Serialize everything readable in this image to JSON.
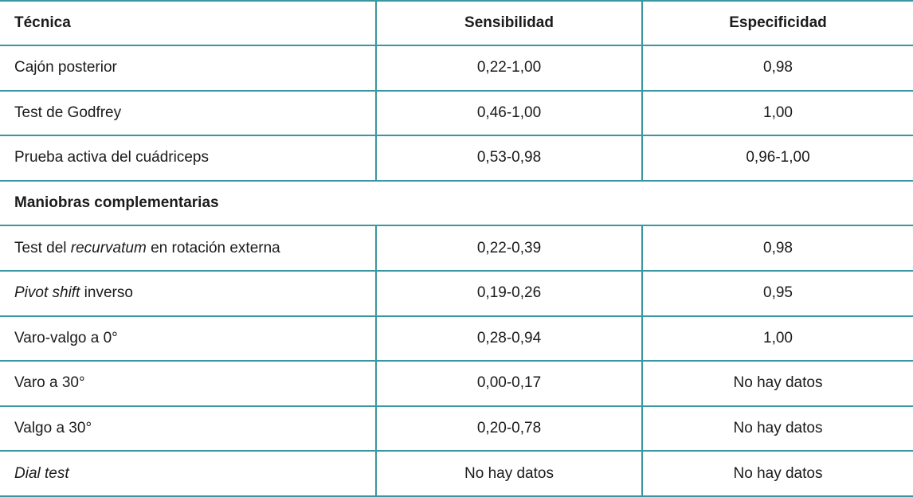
{
  "chart_data": {
    "type": "table",
    "style": {
      "border_color": "#3a96a0",
      "text_color": "#1b1b1b",
      "background": "#ffffff"
    },
    "columns": [
      {
        "label": "Técnica",
        "align": "left"
      },
      {
        "label": "Sensibilidad",
        "align": "center"
      },
      {
        "label": "Especificidad",
        "align": "center"
      }
    ],
    "rows": [
      {
        "kind": "data",
        "name": "cajon-posterior",
        "cells": [
          [
            {
              "text": "Cajón posterior"
            }
          ],
          [
            {
              "text": "0,22-1,00"
            }
          ],
          [
            {
              "text": "0,98"
            }
          ]
        ]
      },
      {
        "kind": "data",
        "name": "test-de-godfrey",
        "cells": [
          [
            {
              "text": "Test de Godfrey"
            }
          ],
          [
            {
              "text": "0,46-1,00"
            }
          ],
          [
            {
              "text": "1,00"
            }
          ]
        ]
      },
      {
        "kind": "data",
        "name": "prueba-activa-del-cuadriceps",
        "cells": [
          [
            {
              "text": "Prueba activa del cuádriceps"
            }
          ],
          [
            {
              "text": "0,53-0,98"
            }
          ],
          [
            {
              "text": "0,96-1,00"
            }
          ]
        ]
      },
      {
        "kind": "section",
        "name": "maniobras-complementarias",
        "label": "Maniobras complementarias"
      },
      {
        "kind": "data",
        "name": "test-del-recurvatum-en-rotacion-externa",
        "cells": [
          [
            {
              "text": "Test del "
            },
            {
              "text": "recurvatum",
              "italic": true
            },
            {
              "text": " en rotación externa"
            }
          ],
          [
            {
              "text": "0,22-0,39"
            }
          ],
          [
            {
              "text": "0,98"
            }
          ]
        ]
      },
      {
        "kind": "data",
        "name": "pivot-shift-inverso",
        "cells": [
          [
            {
              "text": "Pivot shift",
              "italic": true
            },
            {
              "text": " inverso"
            }
          ],
          [
            {
              "text": "0,19-0,26"
            }
          ],
          [
            {
              "text": "0,95"
            }
          ]
        ]
      },
      {
        "kind": "data",
        "name": "varo-valgo-a-0",
        "cells": [
          [
            {
              "text": "Varo-valgo a 0°"
            }
          ],
          [
            {
              "text": "0,28-0,94"
            }
          ],
          [
            {
              "text": "1,00"
            }
          ]
        ]
      },
      {
        "kind": "data",
        "name": "varo-a-30",
        "cells": [
          [
            {
              "text": "Varo a 30°"
            }
          ],
          [
            {
              "text": "0,00-0,17"
            }
          ],
          [
            {
              "text": "No hay datos"
            }
          ]
        ]
      },
      {
        "kind": "data",
        "name": "valgo-a-30",
        "cells": [
          [
            {
              "text": "Valgo a 30°"
            }
          ],
          [
            {
              "text": "0,20-0,78"
            }
          ],
          [
            {
              "text": "No hay datos"
            }
          ]
        ]
      },
      {
        "kind": "data",
        "name": "dial-test",
        "cells": [
          [
            {
              "text": "Dial test",
              "italic": true
            }
          ],
          [
            {
              "text": "No hay datos"
            }
          ],
          [
            {
              "text": "No hay datos"
            }
          ]
        ]
      }
    ]
  }
}
